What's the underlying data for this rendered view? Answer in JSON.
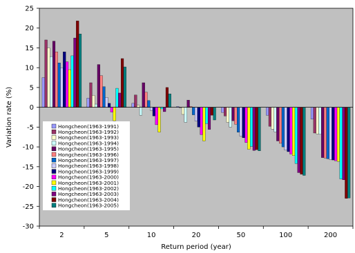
{
  "chart_data": {
    "type": "bar",
    "xlabel": "Return period (year)",
    "ylabel": "Variation rate (%)",
    "ylim": [
      -30,
      25
    ],
    "yticks": [
      25,
      20,
      15,
      10,
      5,
      0,
      -5,
      -10,
      -15,
      -20,
      -25,
      -30
    ],
    "categories": [
      "2",
      "5",
      "10",
      "20",
      "50",
      "100",
      "200"
    ],
    "grid": false,
    "plot_background": "#c0c0c0",
    "legend_position": "lower-left inside plot",
    "series": [
      {
        "name": "Hongcheon(1963-1991)",
        "color": "#9999ff",
        "values": [
          7.5,
          2.3,
          1.0,
          0.2,
          -1.3,
          -2.0,
          -3.0
        ]
      },
      {
        "name": "Hongcheon(1963-1992)",
        "color": "#993366",
        "values": [
          17.0,
          6.2,
          3.1,
          -0.1,
          -2.2,
          -4.8,
          -6.5
        ]
      },
      {
        "name": "Hongcheon(1963-1993)",
        "color": "#ffffcc",
        "values": [
          15.0,
          3.0,
          0.5,
          -1.8,
          -3.8,
          -5.5,
          -6.7
        ]
      },
      {
        "name": "Hongcheon(1963-1994)",
        "color": "#ccffff",
        "values": [
          12.8,
          0.8,
          -2.0,
          -3.8,
          -5.0,
          -6.2,
          -6.8
        ]
      },
      {
        "name": "Hongcheon(1963-1995)",
        "color": "#660066",
        "values": [
          16.7,
          10.8,
          6.2,
          1.8,
          -3.4,
          -8.5,
          -12.7
        ]
      },
      {
        "name": "Hongcheon(1963-1996)",
        "color": "#ff8080",
        "values": [
          14.0,
          8.0,
          3.8,
          0.2,
          -4.3,
          -9.1,
          -12.8
        ]
      },
      {
        "name": "Hongcheon(1963-1997)",
        "color": "#0066cc",
        "values": [
          11.2,
          5.2,
          1.7,
          -1.9,
          -6.3,
          -10.0,
          -13.0
        ]
      },
      {
        "name": "Hongcheon(1963-1998)",
        "color": "#ccccff",
        "values": [
          10.0,
          2.5,
          -0.8,
          -3.5,
          -7.3,
          -10.8,
          -13.2
        ]
      },
      {
        "name": "Hongcheon(1963-1999)",
        "color": "#000080",
        "values": [
          14.0,
          1.0,
          -2.2,
          -5.0,
          -7.7,
          -11.2,
          -13.3
        ]
      },
      {
        "name": "Hongcheon(1963-2000)",
        "color": "#ff00ff",
        "values": [
          11.5,
          -1.2,
          -4.4,
          -6.9,
          -8.9,
          -11.8,
          -13.5
        ]
      },
      {
        "name": "Hongcheon(1963-2001)",
        "color": "#ffff00",
        "values": [
          9.5,
          -3.4,
          -6.3,
          -8.5,
          -10.6,
          -12.2,
          -13.7
        ]
      },
      {
        "name": "Hongcheon(1963-2002)",
        "color": "#00ffff",
        "values": [
          13.0,
          4.8,
          -0.4,
          -4.1,
          -9.9,
          -14.2,
          -18.1
        ]
      },
      {
        "name": "Hongcheon(1963-2003)",
        "color": "#800080",
        "values": [
          17.5,
          3.6,
          -1.1,
          -5.6,
          -10.9,
          -16.5,
          -18.3
        ]
      },
      {
        "name": "Hongcheon(1963-2004)",
        "color": "#800000",
        "values": [
          21.8,
          12.3,
          5.0,
          -2.0,
          -10.7,
          -16.9,
          -23.0
        ]
      },
      {
        "name": "Hongcheon(1963-2005)",
        "color": "#008080",
        "values": [
          18.5,
          10.2,
          3.4,
          -3.2,
          -11.0,
          -17.2,
          -22.9
        ]
      }
    ]
  }
}
